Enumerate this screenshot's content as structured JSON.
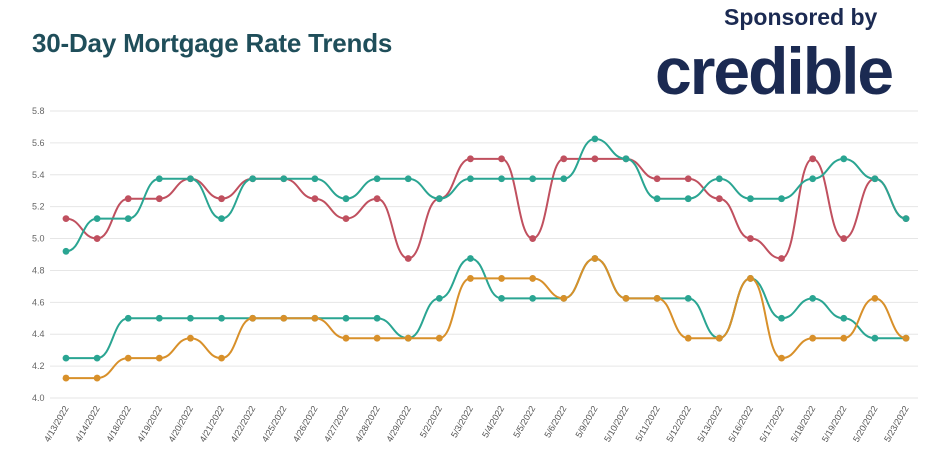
{
  "header": {
    "title": "30-Day Mortgage Rate Trends",
    "sponsor_label": "Sponsored by",
    "brand": "credible"
  },
  "colors": {
    "title": "#1f4e5a",
    "brand": "#1b2a52",
    "series_red": "#c0505f",
    "series_teal": "#2aa592",
    "series_orange": "#d8902a",
    "grid": "#e6e6e6"
  },
  "chart_data": {
    "type": "line",
    "title": "30-Day Mortgage Rate Trends",
    "xlabel": "",
    "ylabel": "",
    "ylim": [
      4.0,
      5.8
    ],
    "y_ticks": [
      "4.0",
      "4.2",
      "4.4",
      "4.6",
      "4.8",
      "5.0",
      "5.2",
      "5.4",
      "5.6",
      "5.8"
    ],
    "grid": true,
    "legend": "none",
    "categories": [
      "4/13/2022",
      "4/14/2022",
      "4/18/2022",
      "4/19/2022",
      "4/20/2022",
      "4/21/2022",
      "4/22/2022",
      "4/25/2022",
      "4/26/2022",
      "4/27/2022",
      "4/28/2022",
      "4/29/2022",
      "5/2/2022",
      "5/3/2022",
      "5/4/2022",
      "5/5/2022",
      "5/6/2022",
      "5/9/2022",
      "5/10/2022",
      "5/11/2022",
      "5/12/2022",
      "5/13/2022",
      "5/16/2022",
      "5/17/2022",
      "5/18/2022",
      "5/19/2022",
      "5/20/2022",
      "5/23/2022"
    ],
    "series": [
      {
        "color": "#c0505f",
        "values": [
          5.125,
          5.0,
          5.25,
          5.25,
          5.375,
          5.25,
          5.375,
          5.375,
          5.25,
          5.125,
          5.25,
          4.875,
          5.25,
          5.5,
          5.5,
          5.0,
          5.5,
          5.5,
          5.5,
          5.375,
          5.375,
          5.25,
          5.0,
          4.875,
          5.5,
          5.0,
          5.375,
          5.125
        ]
      },
      {
        "color": "#2aa592",
        "values": [
          4.92,
          5.125,
          5.125,
          5.375,
          5.375,
          5.125,
          5.375,
          5.375,
          5.375,
          5.25,
          5.375,
          5.375,
          5.25,
          5.375,
          5.375,
          5.375,
          5.375,
          5.625,
          5.5,
          5.25,
          5.25,
          5.375,
          5.25,
          5.25,
          5.375,
          5.5,
          5.375,
          5.125
        ]
      },
      {
        "color": "#2aa592",
        "values": [
          4.25,
          4.25,
          4.5,
          4.5,
          4.5,
          4.5,
          4.5,
          4.5,
          4.5,
          4.5,
          4.5,
          4.375,
          4.625,
          4.875,
          4.625,
          4.625,
          4.625,
          4.875,
          4.625,
          4.625,
          4.625,
          4.375,
          4.75,
          4.5,
          4.625,
          4.5,
          4.375,
          4.375
        ]
      },
      {
        "color": "#d8902a",
        "values": [
          4.125,
          4.125,
          4.25,
          4.25,
          4.375,
          4.25,
          4.5,
          4.5,
          4.5,
          4.375,
          4.375,
          4.375,
          4.375,
          4.75,
          4.75,
          4.75,
          4.625,
          4.875,
          4.625,
          4.625,
          4.375,
          4.375,
          4.75,
          4.25,
          4.375,
          4.375,
          4.625,
          4.375
        ]
      }
    ]
  }
}
